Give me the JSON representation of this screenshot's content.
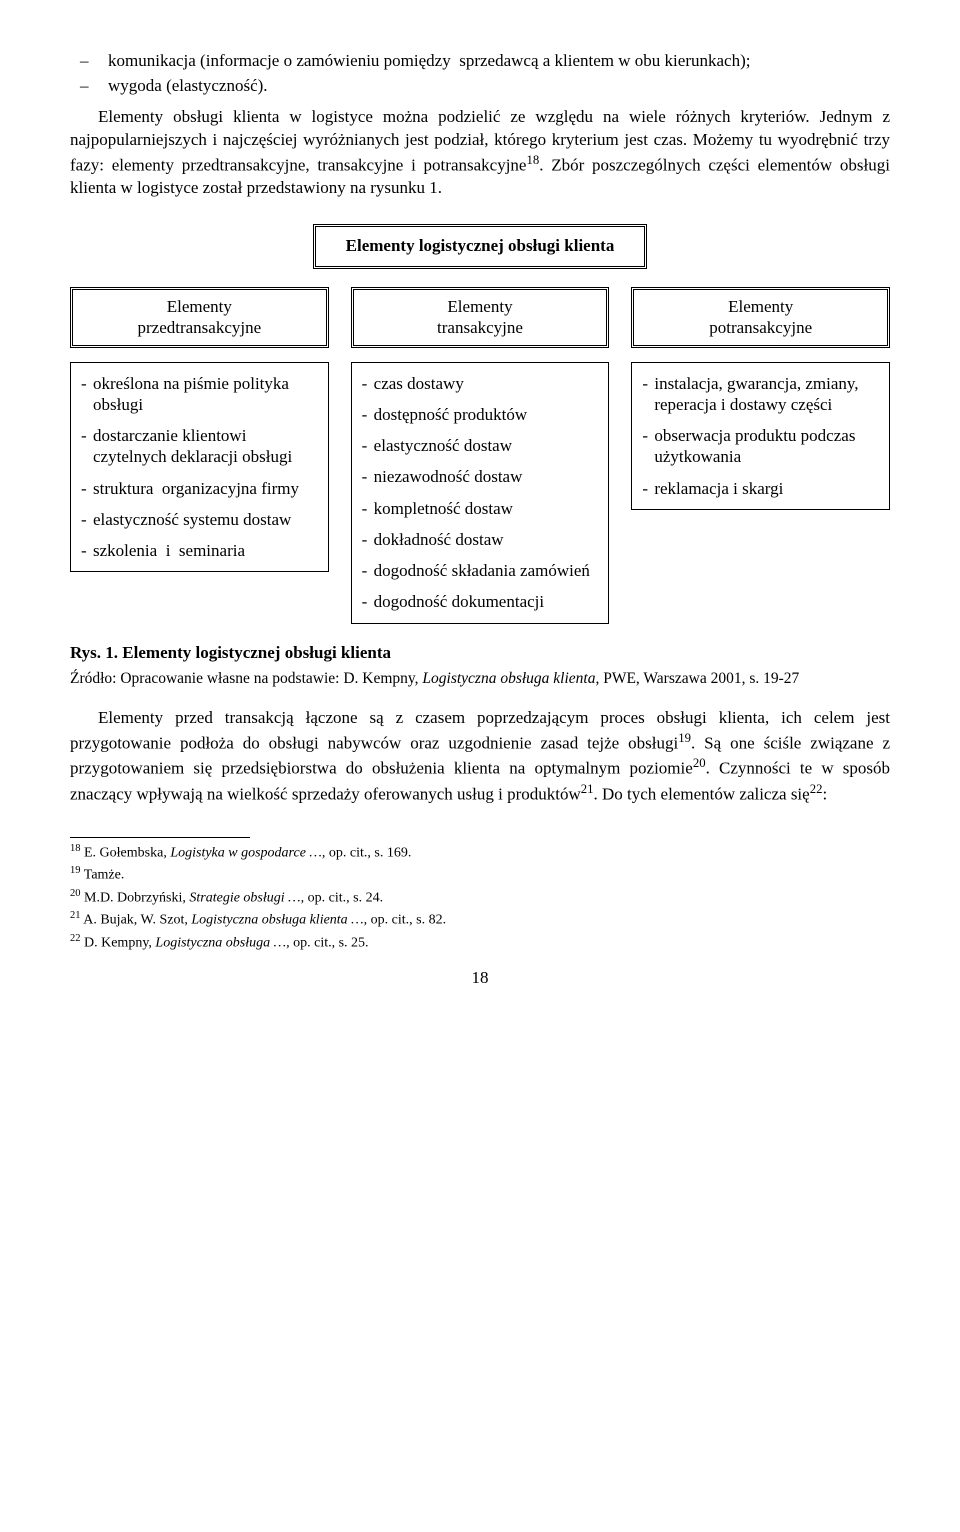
{
  "top_bullets": [
    "komunikacja (informacje o zamówieniu pomiędzy  sprzedawcą a klientem w obu kierunkach);",
    "wygoda (elastyczność)."
  ],
  "intro_para": "Elementy obsługi klienta w logistyce można podzielić ze względu na wiele różnych kryteriów. Jednym z najpopularniejszych i najczęściej wyróżnianych jest podział, którego kryterium jest czas. Możemy tu wyodrębnić trzy fazy: elementy przedtransakcyjne, transakcyjne i potransakcyjne",
  "intro_sup": "18",
  "intro_after_sup": ". Zbór poszczególnych części elementów obsługi klienta w logistyce został przedstawiony na rysunku 1.",
  "diagram": {
    "title": "Elementy logistycznej obsługi klienta",
    "columns": [
      {
        "head_lines": [
          "Elementy",
          "przedtransakcyjne"
        ],
        "items": [
          "określona na piśmie polityka obsługi",
          "dostarczanie klientowi czytelnych deklaracji obsługi",
          "struktura  organizacyjna firmy",
          "elastyczność systemu dostaw",
          "szkolenia  i  seminaria"
        ]
      },
      {
        "head_lines": [
          "Elementy",
          "transakcyjne"
        ],
        "items": [
          "czas dostawy",
          "dostępność produktów",
          "elastyczność dostaw",
          "niezawodność dostaw",
          "kompletność dostaw",
          "dokładność dostaw",
          "dogodność składania zamówień",
          "dogodność dokumentacji"
        ]
      },
      {
        "head_lines": [
          "Elementy",
          "potransakcyjne"
        ],
        "items": [
          "instalacja, gwarancja, zmiany, reperacja i dostawy części",
          "obserwacja produktu podczas użytkowania",
          "reklamacja i skargi"
        ]
      }
    ]
  },
  "caption": "Rys. 1. Elementy logistycznej obsługi klienta",
  "source_prefix": "Źródło: Opracowanie własne na podstawie: D. Kempny, ",
  "source_em": "Logistyczna obsługa klienta",
  "source_suffix": ", PWE, Warszawa 2001, s. 19-27",
  "body2": {
    "seg1": "Elementy przed transakcją łączone są z czasem poprzedzającym proces obsługi klienta, ich celem jest przygotowanie podłoża do obsługi nabywców oraz uzgodnienie zasad tejże obsługi",
    "sup1": "19",
    "seg2": ". Są one ściśle związane z przygotowaniem się przedsiębiorstwa do obsłużenia klienta na optymalnym poziomie",
    "sup2": "20",
    "seg3": ". Czynności te w sposób znaczący wpływają na wielkość sprzedaży oferowanych usług i produktów",
    "sup3": "21",
    "seg4": ". Do tych elementów zalicza się",
    "sup4": "22",
    "seg5": ":"
  },
  "footnotes": [
    {
      "num": "18",
      "pre": " E. Gołembska, ",
      "em": "Logistyka w gospodarce …, ",
      "post": "op. cit., s. 169."
    },
    {
      "num": "19",
      "pre": " Tamże.",
      "em": "",
      "post": ""
    },
    {
      "num": "20",
      "pre": " M.D. Dobrzyński, ",
      "em": "Strategie obsługi …, ",
      "post": "op. cit., s. 24."
    },
    {
      "num": "21",
      "pre": " A. Bujak, W. Szot, ",
      "em": "Logistyczna obsługa klienta …, ",
      "post": "op. cit., s. 82."
    },
    {
      "num": "22",
      "pre": " D. Kempny, ",
      "em": "Logistyczna obsługa …, ",
      "post": "op. cit., s. 25."
    }
  ],
  "page_number": "18"
}
